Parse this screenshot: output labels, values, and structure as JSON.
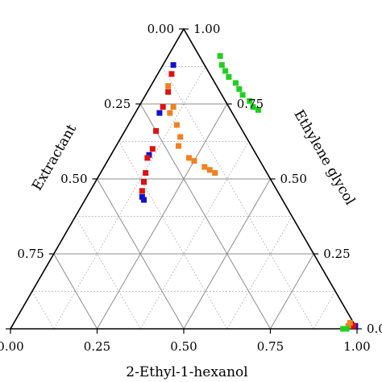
{
  "chart_data": {
    "type": "scatter",
    "subtype": "ternary",
    "axes": {
      "bottom": {
        "label": "2-Ethyl-1-hexanol",
        "ticks": [
          "0.00",
          "0.25",
          "0.50",
          "0.75",
          "1.00"
        ]
      },
      "left": {
        "label": "Extractant",
        "ticks": [
          "0.00",
          "0.25",
          "0.50",
          "0.75",
          "1.00"
        ]
      },
      "right": {
        "label": "Ethylene glycol",
        "ticks": [
          "0.00",
          "0.25",
          "0.50",
          "0.75",
          "1.00"
        ]
      }
    },
    "grid": {
      "major": [
        0.25,
        0.5,
        0.75
      ],
      "minor": [
        0.125,
        0.375,
        0.625,
        0.875
      ],
      "major_color": "#8c8c8c",
      "minor_color": "#a8a8a8"
    },
    "marker": "square",
    "series": [
      {
        "color": "#1010d0",
        "points": [
          {
            "e": 0.88,
            "h": 0.03
          },
          {
            "e": 0.72,
            "h": 0.07
          },
          {
            "e": 0.58,
            "h": 0.11
          },
          {
            "e": 0.49,
            "h": 0.14
          },
          {
            "e": 0.44,
            "h": 0.16
          },
          {
            "e": 0.43,
            "h": 0.17
          },
          {
            "e": 0.01,
            "h": 0.99
          },
          {
            "e": 0.01,
            "h": 0.98
          }
        ]
      },
      {
        "color": "#e01010",
        "points": [
          {
            "e": 0.85,
            "h": 0.04
          },
          {
            "e": 0.79,
            "h": 0.06
          },
          {
            "e": 0.74,
            "h": 0.07
          },
          {
            "e": 0.66,
            "h": 0.09
          },
          {
            "e": 0.6,
            "h": 0.11
          },
          {
            "e": 0.57,
            "h": 0.11
          },
          {
            "e": 0.52,
            "h": 0.13
          },
          {
            "e": 0.49,
            "h": 0.14
          },
          {
            "e": 0.46,
            "h": 0.15
          },
          {
            "e": 0.01,
            "h": 0.985
          }
        ]
      },
      {
        "color": "#f28020",
        "points": [
          {
            "e": 0.81,
            "h": 0.05
          },
          {
            "e": 0.74,
            "h": 0.1
          },
          {
            "e": 0.72,
            "h": 0.1
          },
          {
            "e": 0.68,
            "h": 0.14
          },
          {
            "e": 0.64,
            "h": 0.17
          },
          {
            "e": 0.61,
            "h": 0.18
          },
          {
            "e": 0.57,
            "h": 0.23
          },
          {
            "e": 0.56,
            "h": 0.25
          },
          {
            "e": 0.54,
            "h": 0.29
          },
          {
            "e": 0.53,
            "h": 0.31
          },
          {
            "e": 0.52,
            "h": 0.33
          },
          {
            "e": 0.02,
            "h": 0.97
          },
          {
            "e": 0.01,
            "h": 0.97
          },
          {
            "e": 0.0,
            "h": 0.96
          }
        ]
      },
      {
        "color": "#20d020",
        "points": [
          {
            "e": 0.91,
            "h": 0.15
          },
          {
            "e": 0.88,
            "h": 0.17
          },
          {
            "e": 0.86,
            "h": 0.19
          },
          {
            "e": 0.84,
            "h": 0.21
          },
          {
            "e": 0.82,
            "h": 0.24
          },
          {
            "e": 0.8,
            "h": 0.26
          },
          {
            "e": 0.78,
            "h": 0.28
          },
          {
            "e": 0.76,
            "h": 0.31
          },
          {
            "e": 0.74,
            "h": 0.33
          },
          {
            "e": 0.73,
            "h": 0.35
          },
          {
            "e": 0.0,
            "h": 0.97
          },
          {
            "e": 0.0,
            "h": 0.96
          }
        ]
      }
    ]
  }
}
